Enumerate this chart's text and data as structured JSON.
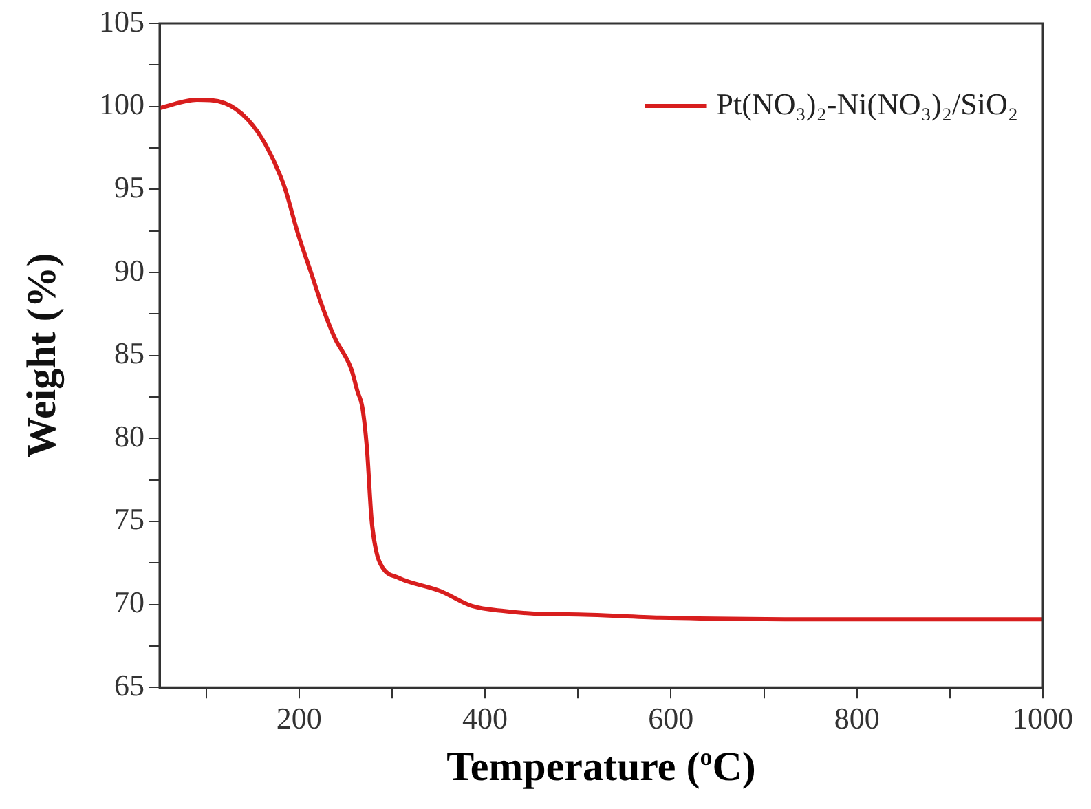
{
  "chart_data": {
    "type": "line",
    "xlabel": "Temperature ($^{o}$C)",
    "ylabel": "Weight (%)",
    "xlim": [
      50,
      1000
    ],
    "ylim": [
      65,
      105
    ],
    "xticks": [
      {
        "value": 100,
        "label": null
      },
      200,
      {
        "value": 300,
        "label": null
      },
      400,
      {
        "value": 500,
        "label": null
      },
      600,
      {
        "value": 700,
        "label": null
      },
      800,
      {
        "value": 900,
        "label": null
      },
      1000
    ],
    "yticks": [
      65,
      {
        "value": 67.5,
        "label": null
      },
      70,
      {
        "value": 72.5,
        "label": null
      },
      75,
      {
        "value": 77.5,
        "label": null
      },
      80,
      {
        "value": 82.5,
        "label": null
      },
      85,
      {
        "value": 87.5,
        "label": null
      },
      90,
      {
        "value": 92.5,
        "label": null
      },
      95,
      {
        "value": 97.5,
        "label": null
      },
      100,
      {
        "value": 102.5,
        "label": null
      },
      105
    ],
    "grid": false,
    "legend": "top right",
    "marker": "none",
    "line_style": "solid",
    "series": [
      {
        "name": "Pt(NO₃)₂-Ni(NO₃)₂/SiO₂",
        "color": "#d81e1e",
        "x": [
          50,
          90,
          120,
          145,
          164,
          184,
          199,
          214,
          224,
          238,
          256,
          263,
          268,
          273,
          278,
          283,
          290,
          307,
          352,
          386,
          421,
          470,
          490,
          588,
          786,
          1000
        ],
        "values": [
          99.9,
          100.4,
          100.2,
          99.2,
          97.7,
          95.2,
          92.3,
          89.8,
          88.1,
          86.1,
          84.2,
          82.8,
          81.9,
          79.4,
          75.1,
          73.2,
          72.2,
          71.6,
          70.8,
          69.9,
          69.6,
          69.4,
          69.4,
          69.2,
          69.1,
          69.1
        ]
      }
    ]
  }
}
